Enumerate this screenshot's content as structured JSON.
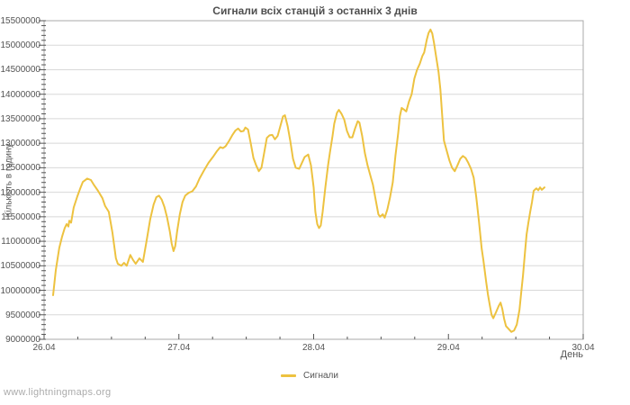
{
  "page": {
    "watermark": "www.lightningmaps.org"
  },
  "colors": {
    "line": "#edc240",
    "grid": "#d8d8d8",
    "border": "#aaaaaa",
    "tick": "#545454",
    "text": "#545454",
    "title": "#4f4f4f",
    "watermark": "#ababab"
  },
  "chart_data": {
    "type": "line",
    "title": "Сигнали всіх станцій з останніх 3 днів",
    "xlabel": "День",
    "ylabel": "Кількість в годину",
    "legend_position": "bottom-center",
    "grid": "horizontal-only",
    "x_tick_labels": [
      "26.04",
      "27.04",
      "28.04",
      "29.04",
      "30.04"
    ],
    "y_tick_labels": [
      "9000000",
      "9500000",
      "10000000",
      "10500000",
      "11000000",
      "11500000",
      "12000000",
      "12500000",
      "13000000",
      "13500000",
      "14000000",
      "14500000",
      "15000000",
      "15500000"
    ],
    "ylim": [
      9000000,
      15500000
    ],
    "xlim_days": [
      0,
      4
    ],
    "y_major_step": 500000,
    "y_minor_step": 100000,
    "x_minor_step_days": 0.25,
    "series": [
      {
        "name": "Сигнали",
        "color": "#edc240",
        "points": [
          [
            0.067,
            9900000
          ],
          [
            0.087,
            10410000
          ],
          [
            0.113,
            10870000
          ],
          [
            0.133,
            11090000
          ],
          [
            0.153,
            11270000
          ],
          [
            0.167,
            11350000
          ],
          [
            0.18,
            11300000
          ],
          [
            0.187,
            11420000
          ],
          [
            0.2,
            11380000
          ],
          [
            0.22,
            11690000
          ],
          [
            0.247,
            11920000
          ],
          [
            0.267,
            12070000
          ],
          [
            0.287,
            12210000
          ],
          [
            0.32,
            12280000
          ],
          [
            0.347,
            12250000
          ],
          [
            0.367,
            12160000
          ],
          [
            0.4,
            12030000
          ],
          [
            0.433,
            11880000
          ],
          [
            0.453,
            11720000
          ],
          [
            0.48,
            11600000
          ],
          [
            0.507,
            11180000
          ],
          [
            0.533,
            10650000
          ],
          [
            0.547,
            10540000
          ],
          [
            0.573,
            10500000
          ],
          [
            0.593,
            10560000
          ],
          [
            0.613,
            10500000
          ],
          [
            0.64,
            10720000
          ],
          [
            0.66,
            10620000
          ],
          [
            0.68,
            10540000
          ],
          [
            0.707,
            10650000
          ],
          [
            0.733,
            10580000
          ],
          [
            0.76,
            11000000
          ],
          [
            0.787,
            11450000
          ],
          [
            0.813,
            11750000
          ],
          [
            0.833,
            11900000
          ],
          [
            0.853,
            11930000
          ],
          [
            0.873,
            11850000
          ],
          [
            0.893,
            11700000
          ],
          [
            0.913,
            11480000
          ],
          [
            0.933,
            11200000
          ],
          [
            0.947,
            10950000
          ],
          [
            0.96,
            10800000
          ],
          [
            0.973,
            10900000
          ],
          [
            0.987,
            11200000
          ],
          [
            1.007,
            11550000
          ],
          [
            1.027,
            11800000
          ],
          [
            1.047,
            11930000
          ],
          [
            1.073,
            11990000
          ],
          [
            1.1,
            12020000
          ],
          [
            1.127,
            12120000
          ],
          [
            1.153,
            12280000
          ],
          [
            1.187,
            12450000
          ],
          [
            1.22,
            12600000
          ],
          [
            1.253,
            12720000
          ],
          [
            1.28,
            12830000
          ],
          [
            1.307,
            12920000
          ],
          [
            1.327,
            12900000
          ],
          [
            1.347,
            12940000
          ],
          [
            1.373,
            13050000
          ],
          [
            1.4,
            13180000
          ],
          [
            1.42,
            13260000
          ],
          [
            1.44,
            13300000
          ],
          [
            1.46,
            13240000
          ],
          [
            1.48,
            13250000
          ],
          [
            1.493,
            13320000
          ],
          [
            1.513,
            13280000
          ],
          [
            1.533,
            13000000
          ],
          [
            1.553,
            12700000
          ],
          [
            1.573,
            12550000
          ],
          [
            1.593,
            12430000
          ],
          [
            1.613,
            12500000
          ],
          [
            1.633,
            12800000
          ],
          [
            1.653,
            13110000
          ],
          [
            1.673,
            13160000
          ],
          [
            1.693,
            13170000
          ],
          [
            1.713,
            13080000
          ],
          [
            1.733,
            13150000
          ],
          [
            1.753,
            13350000
          ],
          [
            1.773,
            13550000
          ],
          [
            1.787,
            13570000
          ],
          [
            1.807,
            13350000
          ],
          [
            1.827,
            13040000
          ],
          [
            1.847,
            12680000
          ],
          [
            1.867,
            12500000
          ],
          [
            1.893,
            12480000
          ],
          [
            1.913,
            12600000
          ],
          [
            1.933,
            12720000
          ],
          [
            1.96,
            12770000
          ],
          [
            1.98,
            12550000
          ],
          [
            2.0,
            12100000
          ],
          [
            2.013,
            11600000
          ],
          [
            2.027,
            11350000
          ],
          [
            2.04,
            11270000
          ],
          [
            2.053,
            11320000
          ],
          [
            2.067,
            11600000
          ],
          [
            2.087,
            12100000
          ],
          [
            2.107,
            12550000
          ],
          [
            2.12,
            12800000
          ],
          [
            2.14,
            13150000
          ],
          [
            2.153,
            13400000
          ],
          [
            2.173,
            13620000
          ],
          [
            2.187,
            13680000
          ],
          [
            2.207,
            13600000
          ],
          [
            2.227,
            13480000
          ],
          [
            2.247,
            13250000
          ],
          [
            2.267,
            13120000
          ],
          [
            2.287,
            13120000
          ],
          [
            2.307,
            13300000
          ],
          [
            2.327,
            13450000
          ],
          [
            2.34,
            13420000
          ],
          [
            2.36,
            13150000
          ],
          [
            2.38,
            12800000
          ],
          [
            2.4,
            12550000
          ],
          [
            2.42,
            12350000
          ],
          [
            2.44,
            12150000
          ],
          [
            2.46,
            11850000
          ],
          [
            2.48,
            11550000
          ],
          [
            2.493,
            11500000
          ],
          [
            2.513,
            11550000
          ],
          [
            2.527,
            11480000
          ],
          [
            2.547,
            11650000
          ],
          [
            2.567,
            11900000
          ],
          [
            2.587,
            12200000
          ],
          [
            2.607,
            12750000
          ],
          [
            2.627,
            13200000
          ],
          [
            2.64,
            13550000
          ],
          [
            2.653,
            13720000
          ],
          [
            2.673,
            13680000
          ],
          [
            2.687,
            13650000
          ],
          [
            2.707,
            13850000
          ],
          [
            2.727,
            14000000
          ],
          [
            2.747,
            14320000
          ],
          [
            2.767,
            14500000
          ],
          [
            2.787,
            14620000
          ],
          [
            2.807,
            14780000
          ],
          [
            2.82,
            14850000
          ],
          [
            2.84,
            15120000
          ],
          [
            2.853,
            15250000
          ],
          [
            2.867,
            15320000
          ],
          [
            2.88,
            15240000
          ],
          [
            2.893,
            15050000
          ],
          [
            2.907,
            14800000
          ],
          [
            2.927,
            14450000
          ],
          [
            2.94,
            14100000
          ],
          [
            2.953,
            13600000
          ],
          [
            2.967,
            13050000
          ],
          [
            2.987,
            12850000
          ],
          [
            3.007,
            12650000
          ],
          [
            3.027,
            12500000
          ],
          [
            3.047,
            12430000
          ],
          [
            3.067,
            12550000
          ],
          [
            3.087,
            12680000
          ],
          [
            3.107,
            12740000
          ],
          [
            3.127,
            12700000
          ],
          [
            3.147,
            12600000
          ],
          [
            3.167,
            12480000
          ],
          [
            3.187,
            12300000
          ],
          [
            3.207,
            11900000
          ],
          [
            3.227,
            11400000
          ],
          [
            3.247,
            10850000
          ],
          [
            3.26,
            10600000
          ],
          [
            3.28,
            10170000
          ],
          [
            3.293,
            9920000
          ],
          [
            3.307,
            9700000
          ],
          [
            3.32,
            9500000
          ],
          [
            3.333,
            9430000
          ],
          [
            3.353,
            9550000
          ],
          [
            3.373,
            9680000
          ],
          [
            3.387,
            9750000
          ],
          [
            3.4,
            9620000
          ],
          [
            3.413,
            9420000
          ],
          [
            3.427,
            9270000
          ],
          [
            3.447,
            9210000
          ],
          [
            3.467,
            9150000
          ],
          [
            3.487,
            9180000
          ],
          [
            3.507,
            9300000
          ],
          [
            3.527,
            9600000
          ],
          [
            3.54,
            9950000
          ],
          [
            3.553,
            10300000
          ],
          [
            3.567,
            10750000
          ],
          [
            3.58,
            11140000
          ],
          [
            3.593,
            11380000
          ],
          [
            3.607,
            11600000
          ],
          [
            3.62,
            11800000
          ],
          [
            3.633,
            12030000
          ],
          [
            3.653,
            12080000
          ],
          [
            3.667,
            12040000
          ],
          [
            3.68,
            12100000
          ],
          [
            3.693,
            12050000
          ],
          [
            3.713,
            12100000
          ]
        ]
      }
    ],
    "legend": [
      {
        "label": "Сигнали",
        "color": "#edc240"
      }
    ]
  }
}
